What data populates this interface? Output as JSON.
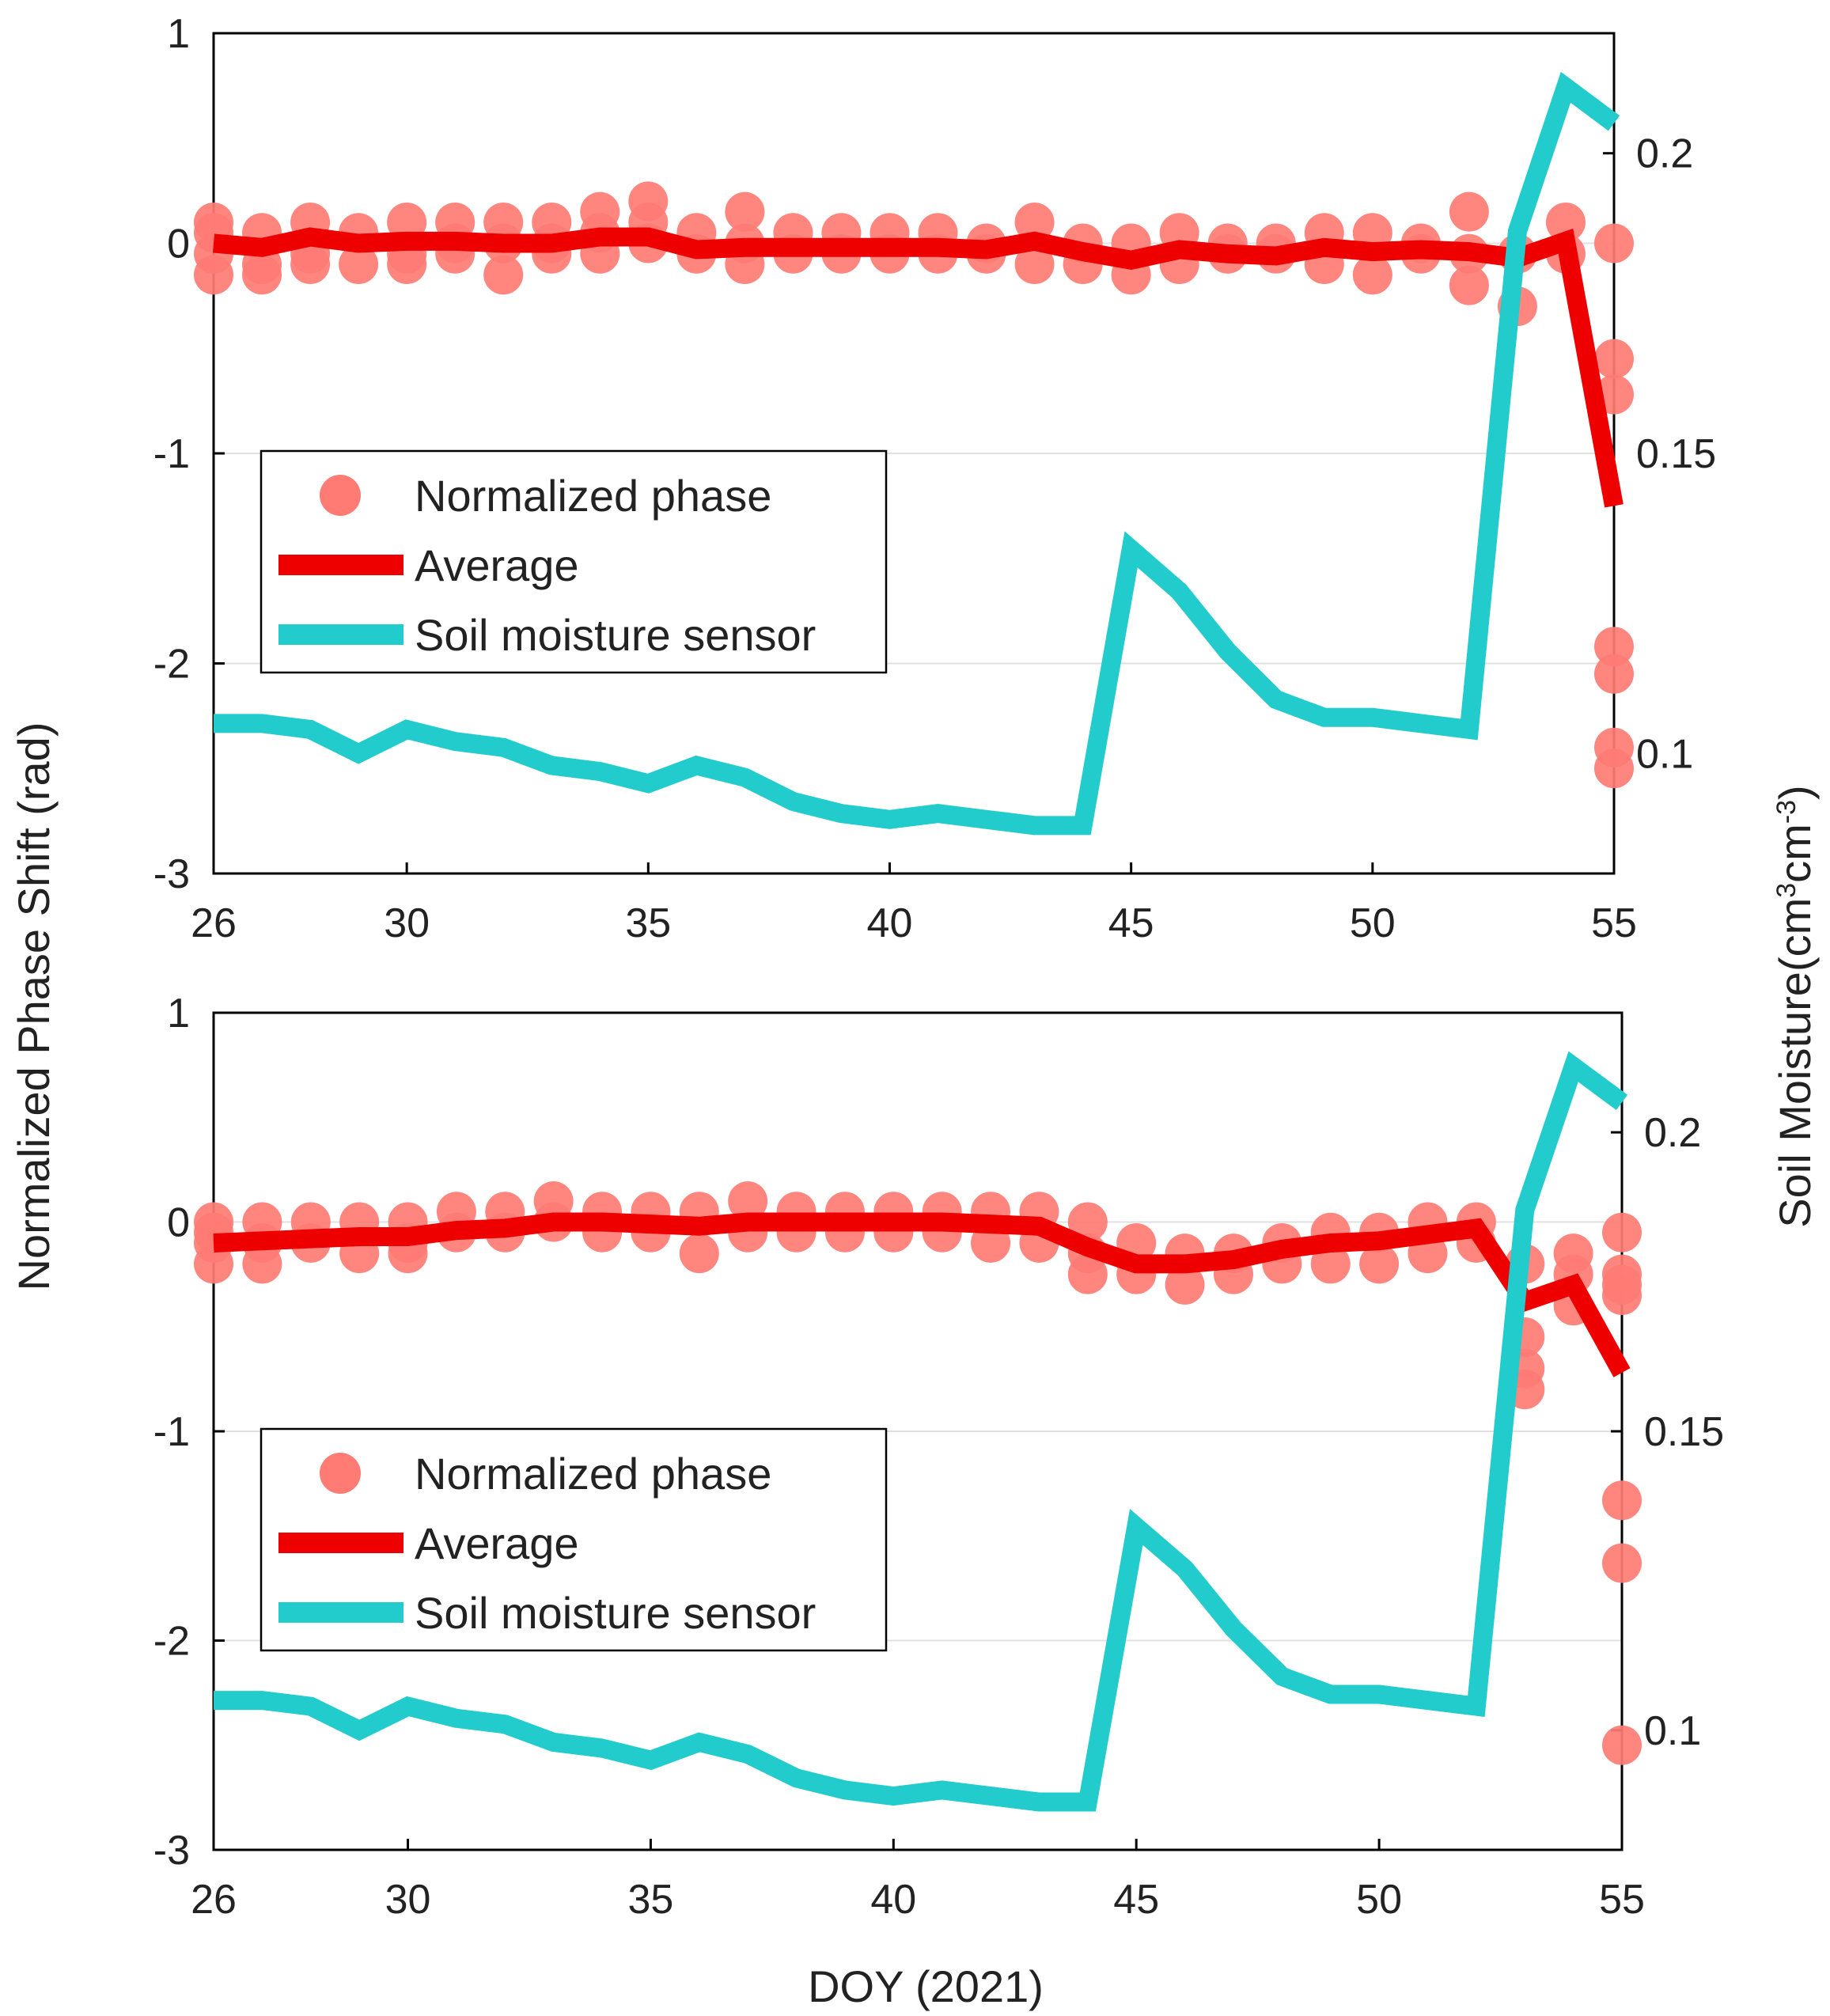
{
  "figure": {
    "shared_ylabel": "Normalized  Phase Shift (rad)",
    "shared_y2label_prefix": "Soil Moisture(cm",
    "shared_y2label_sup1": "3",
    "shared_y2label_mid": "cm",
    "shared_y2label_sup2": "-3",
    "shared_y2label_suffix": ")",
    "colors": {
      "phase_points": "#ff7b74",
      "average": "#ee0000",
      "soil": "#22cccc",
      "axis": "#000000",
      "grid": "#e0e0e0"
    },
    "legend": [
      {
        "label": "Normalized phase",
        "icon": "circle-marker"
      },
      {
        "label": "Average",
        "icon": "red-line"
      },
      {
        "label": "Soil moisture sensor",
        "icon": "cyan-line"
      }
    ]
  },
  "chart_data": [
    {
      "type": "line",
      "panel": "top",
      "xlabel": "",
      "ylabel": "Normalized  Phase Shift (rad)",
      "y2label": "Soil Moisture(cm3cm-3)",
      "xlim": [
        26,
        55
      ],
      "ylim": [
        -3,
        1
      ],
      "y2lim": [
        0.08,
        0.22
      ],
      "xticks": [
        26,
        30,
        35,
        40,
        45,
        50,
        55
      ],
      "yticks": [
        -3,
        -2,
        -1,
        0,
        1
      ],
      "y2ticks": [
        0.1,
        0.15,
        0.2
      ],
      "grid": "horizontal",
      "legend_position": "middle-left",
      "series": [
        {
          "name": "Normalized phase",
          "kind": "scatter",
          "points": [
            [
              26,
              0.1
            ],
            [
              26,
              -0.05
            ],
            [
              26,
              -0.15
            ],
            [
              26,
              0.05
            ],
            [
              27,
              0.05
            ],
            [
              27,
              -0.1
            ],
            [
              27,
              -0.15
            ],
            [
              28,
              0.1
            ],
            [
              28,
              -0.05
            ],
            [
              28,
              -0.1
            ],
            [
              29,
              0.05
            ],
            [
              29,
              -0.1
            ],
            [
              30,
              0.1
            ],
            [
              30,
              -0.05
            ],
            [
              30,
              -0.1
            ],
            [
              31,
              0.1
            ],
            [
              31,
              -0.05
            ],
            [
              31,
              0.0
            ],
            [
              32,
              0.1
            ],
            [
              32,
              -0.15
            ],
            [
              32,
              0.0
            ],
            [
              33,
              0.1
            ],
            [
              33,
              -0.05
            ],
            [
              33,
              0.0
            ],
            [
              34,
              0.15
            ],
            [
              34,
              -0.05
            ],
            [
              34,
              0.05
            ],
            [
              35,
              0.2
            ],
            [
              35,
              0.0
            ],
            [
              35,
              0.1
            ],
            [
              36,
              0.05
            ],
            [
              36,
              -0.05
            ],
            [
              37,
              0.15
            ],
            [
              37,
              -0.1
            ],
            [
              37,
              0.0
            ],
            [
              38,
              0.05
            ],
            [
              38,
              -0.05
            ],
            [
              39,
              0.05
            ],
            [
              39,
              -0.05
            ],
            [
              40,
              0.05
            ],
            [
              40,
              -0.05
            ],
            [
              41,
              0.05
            ],
            [
              41,
              -0.05
            ],
            [
              42,
              0.0
            ],
            [
              42,
              -0.05
            ],
            [
              43,
              0.1
            ],
            [
              43,
              -0.1
            ],
            [
              44,
              0.0
            ],
            [
              44,
              -0.1
            ],
            [
              45,
              0.0
            ],
            [
              45,
              -0.15
            ],
            [
              46,
              0.05
            ],
            [
              46,
              -0.1
            ],
            [
              47,
              0.0
            ],
            [
              47,
              -0.05
            ],
            [
              48,
              -0.05
            ],
            [
              48,
              0.0
            ],
            [
              49,
              0.05
            ],
            [
              49,
              -0.1
            ],
            [
              50,
              0.05
            ],
            [
              50,
              -0.15
            ],
            [
              51,
              0.0
            ],
            [
              51,
              -0.05
            ],
            [
              52,
              0.15
            ],
            [
              52,
              -0.2
            ],
            [
              52,
              -0.05
            ],
            [
              53,
              -0.05
            ],
            [
              53,
              -0.3
            ],
            [
              54,
              0.1
            ],
            [
              54,
              -0.05
            ],
            [
              55,
              0.0
            ],
            [
              55,
              -0.55
            ],
            [
              55,
              -0.72
            ],
            [
              55,
              -1.92
            ],
            [
              55,
              -2.05
            ],
            [
              55,
              -2.4
            ],
            [
              55,
              -2.5
            ]
          ]
        },
        {
          "name": "Average",
          "kind": "line",
          "x": [
            26,
            27,
            28,
            29,
            30,
            31,
            32,
            33,
            34,
            35,
            36,
            37,
            38,
            39,
            40,
            41,
            42,
            43,
            44,
            45,
            46,
            47,
            48,
            49,
            50,
            51,
            52,
            53,
            54,
            55
          ],
          "values": [
            0.0,
            -0.02,
            0.03,
            0.0,
            0.01,
            0.01,
            0.0,
            0.0,
            0.03,
            0.03,
            -0.03,
            -0.02,
            -0.02,
            -0.02,
            -0.02,
            -0.02,
            -0.03,
            0.01,
            -0.04,
            -0.08,
            -0.03,
            -0.05,
            -0.06,
            -0.02,
            -0.04,
            -0.03,
            -0.04,
            -0.07,
            0.01,
            -1.25
          ]
        },
        {
          "name": "Soil moisture sensor",
          "kind": "line",
          "axis": "right",
          "x": [
            26,
            27,
            28,
            29,
            30,
            31,
            32,
            33,
            34,
            35,
            36,
            37,
            38,
            39,
            40,
            41,
            42,
            43,
            44,
            45,
            46,
            47,
            48,
            49,
            50,
            51,
            52,
            53,
            54,
            55
          ],
          "values": [
            0.105,
            0.105,
            0.104,
            0.1,
            0.104,
            0.102,
            0.101,
            0.098,
            0.097,
            0.095,
            0.098,
            0.096,
            0.092,
            0.09,
            0.089,
            0.09,
            0.089,
            0.088,
            0.088,
            0.134,
            0.127,
            0.117,
            0.109,
            0.106,
            0.106,
            0.105,
            0.104,
            0.187,
            0.211,
            0.205
          ]
        }
      ]
    },
    {
      "type": "line",
      "panel": "bottom",
      "xlabel": "DOY (2021)",
      "ylabel": "Normalized  Phase Shift (rad)",
      "y2label": "Soil Moisture(cm3cm-3)",
      "xlim": [
        26,
        55
      ],
      "ylim": [
        -3,
        1
      ],
      "y2lim": [
        0.08,
        0.22
      ],
      "xticks": [
        26,
        30,
        35,
        40,
        45,
        50,
        55
      ],
      "yticks": [
        -3,
        -2,
        -1,
        0,
        1
      ],
      "y2ticks": [
        0.1,
        0.15,
        0.2
      ],
      "grid": "horizontal",
      "legend_position": "middle-left",
      "series": [
        {
          "name": "Normalized phase",
          "kind": "scatter",
          "points": [
            [
              26,
              0.0
            ],
            [
              26,
              -0.1
            ],
            [
              26,
              -0.2
            ],
            [
              26,
              -0.05
            ],
            [
              27,
              0.0
            ],
            [
              27,
              -0.1
            ],
            [
              27,
              -0.2
            ],
            [
              28,
              0.0
            ],
            [
              28,
              -0.1
            ],
            [
              29,
              0.0
            ],
            [
              29,
              -0.15
            ],
            [
              30,
              0.0
            ],
            [
              30,
              -0.1
            ],
            [
              30,
              -0.15
            ],
            [
              31,
              0.05
            ],
            [
              31,
              -0.05
            ],
            [
              32,
              0.05
            ],
            [
              32,
              -0.05
            ],
            [
              33,
              0.1
            ],
            [
              33,
              0.0
            ],
            [
              34,
              0.05
            ],
            [
              34,
              -0.05
            ],
            [
              35,
              0.05
            ],
            [
              35,
              -0.05
            ],
            [
              36,
              0.05
            ],
            [
              36,
              -0.15
            ],
            [
              37,
              0.1
            ],
            [
              37,
              -0.05
            ],
            [
              38,
              0.05
            ],
            [
              38,
              -0.05
            ],
            [
              39,
              0.05
            ],
            [
              39,
              -0.05
            ],
            [
              40,
              0.05
            ],
            [
              40,
              -0.05
            ],
            [
              41,
              0.05
            ],
            [
              41,
              -0.05
            ],
            [
              42,
              0.05
            ],
            [
              42,
              -0.1
            ],
            [
              43,
              0.05
            ],
            [
              43,
              -0.1
            ],
            [
              44,
              0.0
            ],
            [
              44,
              -0.15
            ],
            [
              44,
              -0.25
            ],
            [
              45,
              -0.1
            ],
            [
              45,
              -0.25
            ],
            [
              46,
              -0.15
            ],
            [
              46,
              -0.3
            ],
            [
              47,
              -0.15
            ],
            [
              47,
              -0.25
            ],
            [
              48,
              -0.1
            ],
            [
              48,
              -0.2
            ],
            [
              49,
              -0.05
            ],
            [
              49,
              -0.2
            ],
            [
              50,
              -0.05
            ],
            [
              50,
              -0.2
            ],
            [
              51,
              0.0
            ],
            [
              51,
              -0.15
            ],
            [
              52,
              0.0
            ],
            [
              52,
              -0.1
            ],
            [
              53,
              -0.2
            ],
            [
              53,
              -0.7
            ],
            [
              53,
              -0.8
            ],
            [
              53,
              -0.55
            ],
            [
              54,
              -0.15
            ],
            [
              54,
              -0.25
            ],
            [
              54,
              -0.4
            ],
            [
              55,
              -0.05
            ],
            [
              55,
              -0.25
            ],
            [
              55,
              -0.3
            ],
            [
              55,
              -0.35
            ],
            [
              55,
              -1.33
            ],
            [
              55,
              -1.63
            ],
            [
              55,
              -2.5
            ]
          ]
        },
        {
          "name": "Average",
          "kind": "line",
          "x": [
            26,
            27,
            28,
            29,
            30,
            31,
            32,
            33,
            34,
            35,
            36,
            37,
            38,
            39,
            40,
            41,
            42,
            43,
            44,
            45,
            46,
            47,
            48,
            49,
            50,
            51,
            52,
            53,
            54,
            55
          ],
          "values": [
            -0.1,
            -0.09,
            -0.08,
            -0.07,
            -0.07,
            -0.04,
            -0.03,
            0.0,
            0.0,
            -0.01,
            -0.02,
            0.0,
            0.0,
            0.0,
            0.0,
            0.0,
            -0.01,
            -0.02,
            -0.12,
            -0.2,
            -0.2,
            -0.18,
            -0.13,
            -0.1,
            -0.09,
            -0.06,
            -0.03,
            -0.38,
            -0.3,
            -0.72
          ]
        },
        {
          "name": "Soil moisture sensor",
          "kind": "line",
          "axis": "right",
          "x": [
            26,
            27,
            28,
            29,
            30,
            31,
            32,
            33,
            34,
            35,
            36,
            37,
            38,
            39,
            40,
            41,
            42,
            43,
            44,
            45,
            46,
            47,
            48,
            49,
            50,
            51,
            52,
            53,
            54,
            55
          ],
          "values": [
            0.105,
            0.105,
            0.104,
            0.1,
            0.104,
            0.102,
            0.101,
            0.098,
            0.097,
            0.095,
            0.098,
            0.096,
            0.092,
            0.09,
            0.089,
            0.09,
            0.089,
            0.088,
            0.088,
            0.134,
            0.127,
            0.117,
            0.109,
            0.106,
            0.106,
            0.105,
            0.104,
            0.187,
            0.211,
            0.205
          ]
        }
      ]
    }
  ]
}
